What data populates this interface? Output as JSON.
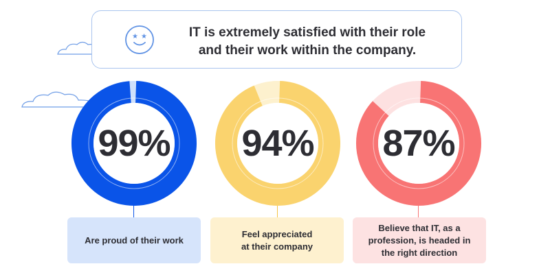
{
  "headline": {
    "line1": "IT is extremely satisfied with their role",
    "line2": "and their work within the company."
  },
  "icons": [
    "smiley-face-icon",
    "cloud-icon"
  ],
  "colors": {
    "blue": "#0a54e8",
    "blue_light": "#cfe0fb",
    "yellow": "#fad36e",
    "yellow_light": "#fdf1ce",
    "red": "#f87474",
    "red_light": "#fde1e1",
    "headline_border": "#a9c4ee",
    "text": "#2d2d33"
  },
  "chart_data": [
    {
      "type": "pie",
      "variant": "donut",
      "values": [
        99
      ],
      "value_label": "99%",
      "category": "Are proud of their work",
      "color": "#0a54e8",
      "track_color": "#cfe0fb",
      "card_color": "#d6e4fb"
    },
    {
      "type": "pie",
      "variant": "donut",
      "values": [
        94
      ],
      "value_label": "94%",
      "category": "Feel appreciated at their company",
      "color": "#fad36e",
      "track_color": "#fdf1ce",
      "card_color": "#fef1cf"
    },
    {
      "type": "pie",
      "variant": "donut",
      "values": [
        87
      ],
      "value_label": "87%",
      "category": "Believe that IT, as a profession, is headed in the right direction",
      "color": "#f87474",
      "track_color": "#fde1e1",
      "card_color": "#fde2e2"
    }
  ]
}
